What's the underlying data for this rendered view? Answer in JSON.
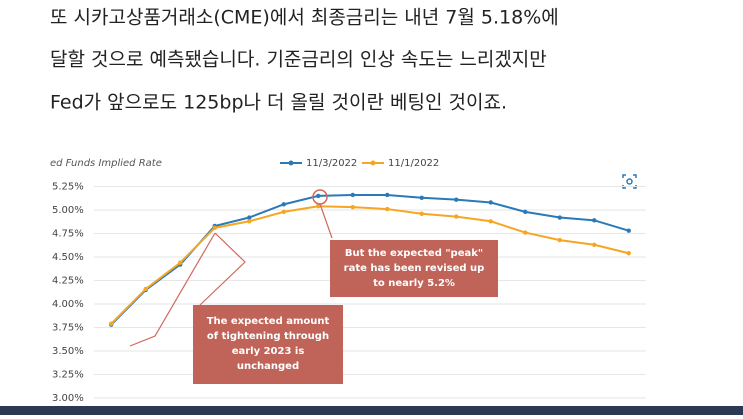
{
  "article": {
    "lines": [
      "또 시카고상품거래소(CME)에서 최종금리는 내년 7월 5.18%에",
      "달할 것으로 예측됐습니다. 기준금리의 인상 속도는 느리겠지만",
      "Fed가 앞으로도 125bp나 더 올릴 것이란 베팅인 것이죠."
    ]
  },
  "chart_data": {
    "type": "line",
    "title": "ed Funds Implied Rate",
    "categories": [
      null,
      null,
      null,
      null,
      null,
      null,
      null,
      null,
      null,
      null,
      null,
      null,
      null,
      null,
      null,
      null
    ],
    "series": [
      {
        "name": "11/3/2022",
        "color": "#2a7ab8",
        "values": [
          3.78,
          4.15,
          4.42,
          4.83,
          4.92,
          5.06,
          5.15,
          5.16,
          5.16,
          5.13,
          5.11,
          5.08,
          4.98,
          4.92,
          4.89,
          4.78
        ]
      },
      {
        "name": "11/1/2022",
        "color": "#f5a623",
        "values": [
          3.79,
          4.16,
          4.44,
          4.81,
          4.88,
          4.98,
          5.04,
          5.03,
          5.01,
          4.96,
          4.93,
          4.88,
          4.76,
          4.68,
          4.63,
          4.54
        ]
      }
    ],
    "ylim": [
      3.0,
      5.4
    ],
    "yticks": [
      {
        "value": 3.0,
        "label": "3.00%"
      },
      {
        "value": 3.25,
        "label": "3.25%"
      },
      {
        "value": 3.5,
        "label": "3.50%"
      },
      {
        "value": 3.75,
        "label": "3.75%"
      },
      {
        "value": 4.0,
        "label": "4.00%"
      },
      {
        "value": 4.25,
        "label": "4.25%"
      },
      {
        "value": 4.5,
        "label": "4.50%"
      },
      {
        "value": 4.75,
        "label": "4.75%"
      },
      {
        "value": 5.0,
        "label": "5.00%"
      },
      {
        "value": 5.25,
        "label": "5.25%"
      }
    ],
    "grid": true,
    "annotations": [
      {
        "lines": [
          "But the expected \"peak\"",
          "rate has been revised up",
          "to nearly 5.2%"
        ]
      },
      {
        "lines": [
          "The expected amount",
          "of tightening through",
          "early 2023 is",
          "unchanged"
        ]
      }
    ]
  }
}
